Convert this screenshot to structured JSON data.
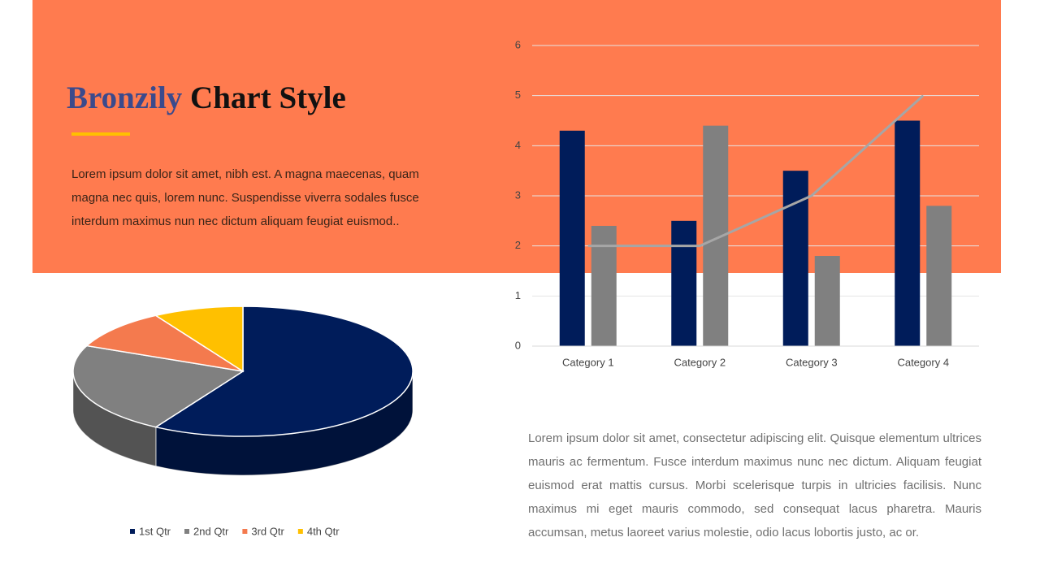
{
  "header": {
    "title_accent": "Bronzily",
    "title_rest": "Chart Style"
  },
  "intro": "Lorem ipsum dolor sit amet, nibh est. A magna maecenas, quam magna nec quis, lorem nunc. Suspendisse viverra sodales  fusce interdum maximus nun nec dictum aliquam feugiat euismod..",
  "body": "Lorem ipsum dolor sit amet, consectetur adipiscing elit. Quisque elementum ultrices mauris ac fermentum. Fusce interdum maximus nunc nec dictum. Aliquam feugiat euismod erat mattis cursus. Morbi scelerisque turpis in ultricies facilisis. Nunc maximus mi eget mauris commodo, sed consequat lacus pharetra. Mauris accumsan, metus laoreet varius molestie, odio lacus lobortis justo, ac or.",
  "chart_data": [
    {
      "type": "pie",
      "categories": [
        "1st Qtr",
        "2nd Qtr",
        "3rd Qtr",
        "4th Qtr"
      ],
      "values": [
        8.2,
        3.2,
        1.4,
        1.2
      ],
      "colors": [
        "#001c5a",
        "#808080",
        "#f47a4e",
        "#ffc000"
      ],
      "legend": "bottom"
    },
    {
      "type": "bar",
      "categories": [
        "Category 1",
        "Category 2",
        "Category 3",
        "Category 4"
      ],
      "series": [
        {
          "color": "#001c5a",
          "values": [
            4.3,
            2.5,
            3.5,
            4.5
          ]
        },
        {
          "color": "#808080",
          "values": [
            2.4,
            4.4,
            1.8,
            2.8
          ]
        },
        {
          "type": "line",
          "color": "#a6a6a6",
          "values": [
            2,
            2,
            3,
            5
          ]
        }
      ],
      "ylim": [
        0,
        6
      ],
      "yticks": [
        0,
        1,
        2,
        3,
        4,
        5,
        6
      ],
      "grid": true
    }
  ]
}
